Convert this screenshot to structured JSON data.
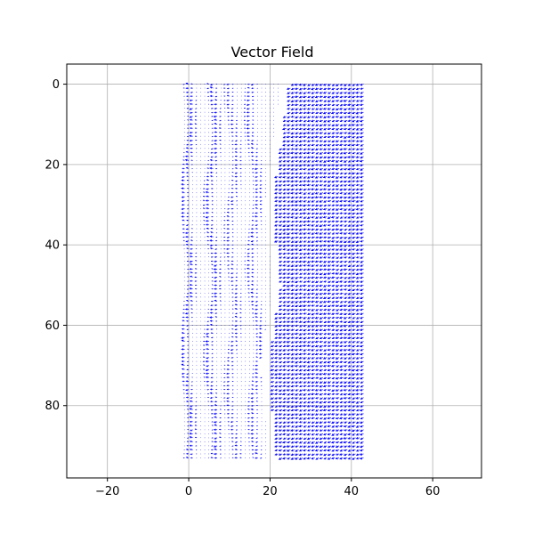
{
  "chart_data": {
    "type": "quiver",
    "title": "Vector Field",
    "xlabel": "",
    "ylabel": "",
    "xlim": [
      -30,
      72
    ],
    "ylim": [
      -5,
      98
    ],
    "y_inverted": true,
    "grid": true,
    "xticks": [
      -20,
      0,
      20,
      40,
      60
    ],
    "yticks": [
      0,
      20,
      40,
      60,
      80
    ],
    "xtick_labels": [
      "−20",
      "0",
      "20",
      "40",
      "60"
    ],
    "ytick_labels": [
      "0",
      "20",
      "40",
      "60",
      "80"
    ],
    "arrow_color": "#0000ff",
    "grid_x_range": [
      -1,
      43
    ],
    "grid_y_range": [
      0,
      93
    ],
    "grid_spacing": 1,
    "region_left": {
      "x_range": [
        -1,
        20
      ],
      "description_values": {
        "dominant_direction_dx": -1,
        "dominant_direction_dy": 0,
        "magnitude_range": [
          0.1,
          1.0
        ]
      },
      "diagonal_bands": [
        {
          "x_at_y0": 0,
          "x_at_y93": 0,
          "strength": 0.9
        },
        {
          "x_at_y0": 6,
          "x_at_y93": 6,
          "strength": 0.9
        },
        {
          "x_at_y0": 11,
          "x_at_y93": 11,
          "strength": 0.7
        },
        {
          "x_at_y0": 16,
          "x_at_y93": 17,
          "strength": 0.8
        }
      ]
    },
    "region_right": {
      "x_range": [
        20,
        43
      ],
      "dominant_direction_dx": -1,
      "dominant_direction_dy": 0.4,
      "magnitude": 1.0
    },
    "gap_diagonal": {
      "x_at_y0": 24,
      "x_at_y30": 20,
      "x_at_y50": 22,
      "x_at_y70": 19,
      "x_at_y93": 21
    }
  }
}
